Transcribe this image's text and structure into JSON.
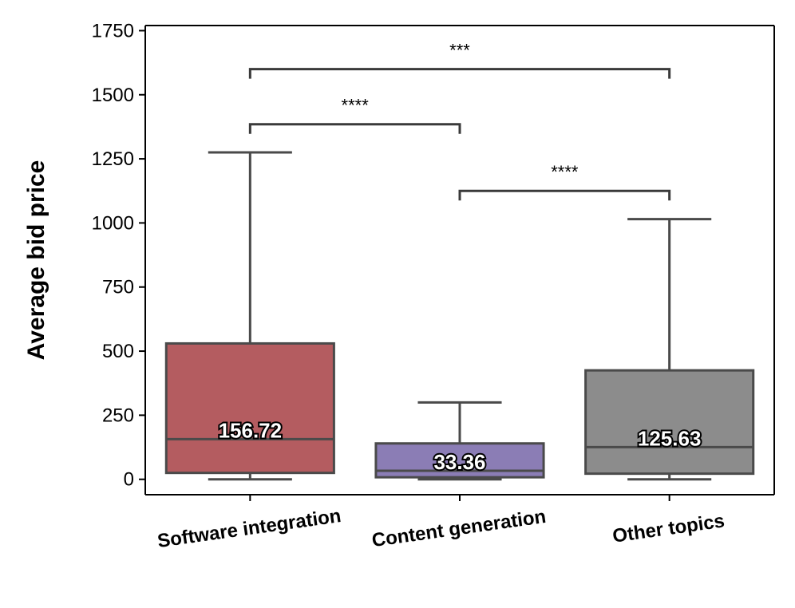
{
  "chart_data": {
    "type": "box",
    "ylabel": "Average bid price",
    "xlabel": "",
    "ylim": [
      -60,
      1770
    ],
    "yticks": [
      0,
      250,
      500,
      750,
      1000,
      1250,
      1500,
      1750
    ],
    "grid": false,
    "categories": [
      "Software integration",
      "Content generation",
      "Other topics"
    ],
    "boxes": [
      {
        "category": "Software integration",
        "color": "#b45c60",
        "whisker_low": 0,
        "q1": 25,
        "median": 156.72,
        "q3": 530,
        "whisker_high": 1275,
        "median_label": "156.72"
      },
      {
        "category": "Content generation",
        "color": "#8b7db5",
        "whisker_low": 0,
        "q1": 8,
        "median": 33.36,
        "q3": 140,
        "whisker_high": 300,
        "median_label": "33.36"
      },
      {
        "category": "Other topics",
        "color": "#8c8c8c",
        "whisker_low": 0,
        "q1": 22,
        "median": 125.63,
        "q3": 425,
        "whisker_high": 1015,
        "median_label": "125.63"
      }
    ],
    "significance": [
      {
        "from": 0,
        "to": 2,
        "y": 1600,
        "label": "***"
      },
      {
        "from": 0,
        "to": 1,
        "y": 1385,
        "label": "****"
      },
      {
        "from": 1,
        "to": 2,
        "y": 1125,
        "label": "****"
      }
    ]
  }
}
